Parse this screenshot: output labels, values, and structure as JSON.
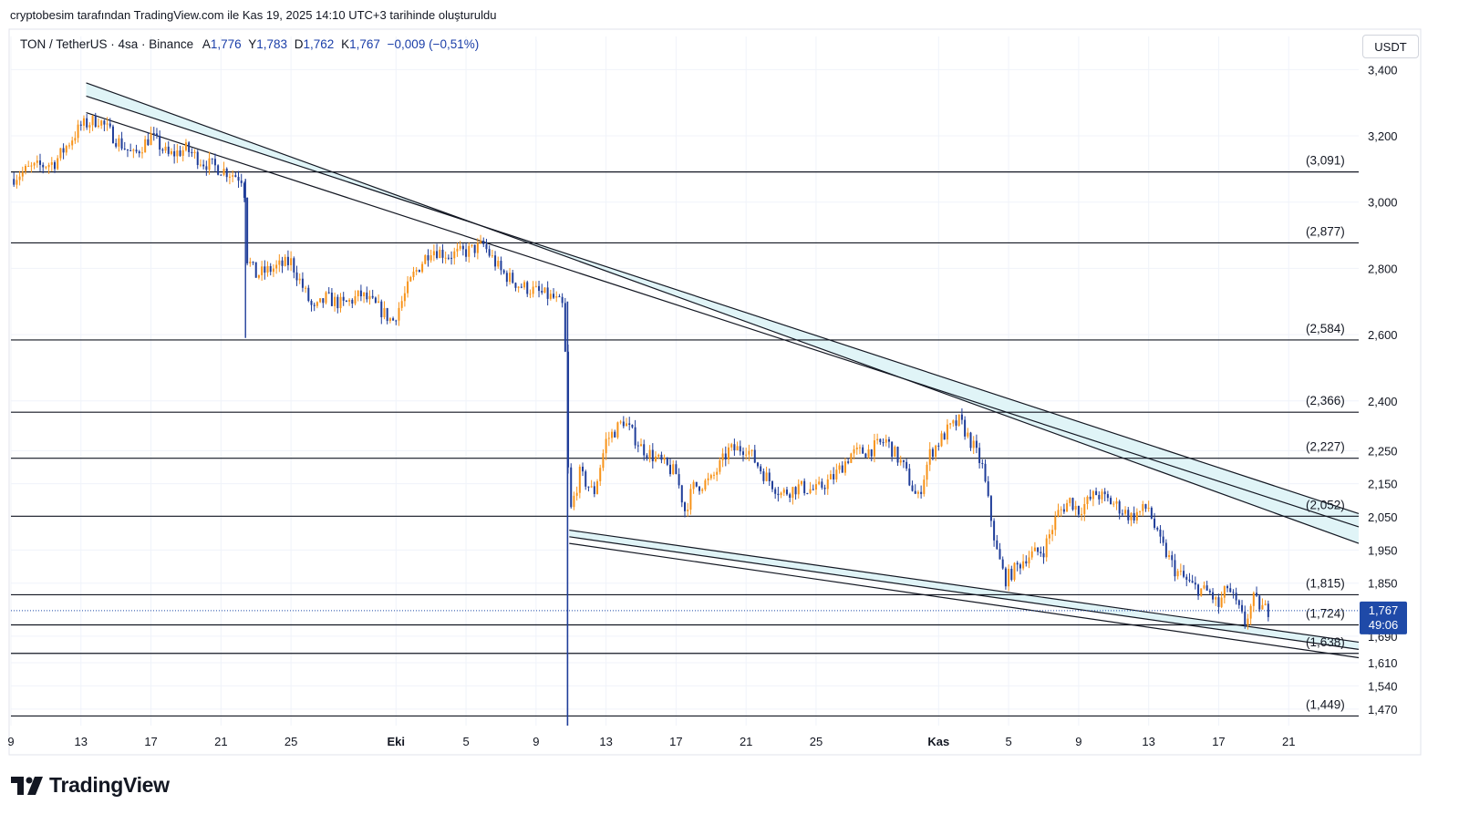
{
  "attribution": "cryptobesim tarafından TradingView.com ile Kas 19, 2025 14:10 UTC+3 tarihinde oluşturuldu",
  "header": {
    "symbol": "TON / TetherUS · 4sa · Binance",
    "open_label": "A",
    "open": "1,776",
    "high_label": "Y",
    "high": "1,783",
    "low_label": "D",
    "low": "1,762",
    "close_label": "K",
    "close": "1,767",
    "change": "−0,009 (−0,51%)"
  },
  "unit_label": "USDT",
  "brand": "TradingView",
  "colors": {
    "up": "#f7931a",
    "down": "#1f3d99",
    "channel_fill": "#e0f4f7",
    "price_tag": "#1f4aa8",
    "line": "#131722"
  },
  "chart_data": {
    "type": "candlestick",
    "title": "TON / TetherUS · 4sa · Binance",
    "ylim": [
      1.42,
      3.5
    ],
    "y_ticks": [
      "3,400",
      "3,200",
      "3,000",
      "2,800",
      "2,600",
      "2,400",
      "2,250",
      "2,150",
      "2,050",
      "1,950",
      "1,850",
      "1,690",
      "1,610",
      "1,540",
      "1,470"
    ],
    "y_tick_values": [
      3.4,
      3.2,
      3.0,
      2.8,
      2.6,
      2.4,
      2.25,
      2.15,
      2.05,
      1.95,
      1.85,
      1.69,
      1.61,
      1.54,
      1.47
    ],
    "x_tick_labels": [
      "9",
      "13",
      "17",
      "21",
      "25",
      "Eki",
      "5",
      "9",
      "13",
      "17",
      "21",
      "25",
      "Kas",
      "5",
      "9",
      "13",
      "17",
      "21"
    ],
    "x_tick_days": [
      9,
      13,
      17,
      21,
      25,
      31,
      35,
      39,
      43,
      47,
      51,
      55,
      62,
      66,
      70,
      74,
      78,
      82
    ],
    "x_bold_labels": [
      "Eki",
      "Kas"
    ],
    "x_range_days": [
      9,
      86
    ],
    "horizontal_levels": [
      {
        "value": 3.091,
        "label": "(3,091)"
      },
      {
        "value": 2.877,
        "label": "(2,877)"
      },
      {
        "value": 2.584,
        "label": "(2,584)"
      },
      {
        "value": 2.366,
        "label": "(2,366)"
      },
      {
        "value": 2.227,
        "label": "(2,227)"
      },
      {
        "value": 2.052,
        "label": "(2,052)"
      },
      {
        "value": 1.815,
        "label": "(1,815)"
      },
      {
        "value": 1.724,
        "label": "(1,724)"
      },
      {
        "value": 1.638,
        "label": "(1,638)"
      },
      {
        "value": 1.449,
        "label": "(1,449)"
      }
    ],
    "upper_channel": {
      "start_day": 13.3,
      "end_day": 86,
      "outer": [
        3.36,
        1.97
      ],
      "inner": [
        3.27,
        2.02
      ],
      "inner_fill_band": [
        3.32,
        2.06
      ]
    },
    "lower_channel": {
      "start_day": 40.9,
      "end_day": 86,
      "lines": [
        [
          2.01,
          1.672
        ],
        [
          1.99,
          1.65
        ],
        [
          1.97,
          1.625
        ]
      ]
    },
    "current_price": {
      "value": 1.767,
      "label": "1,767",
      "countdown": "49:06"
    },
    "anchors": [
      [
        9,
        3.07
      ],
      [
        10,
        3.1
      ],
      [
        11.5,
        3.12
      ],
      [
        13,
        3.23
      ],
      [
        14,
        3.25
      ],
      [
        15,
        3.19
      ],
      [
        16,
        3.14
      ],
      [
        17,
        3.2
      ],
      [
        18,
        3.14
      ],
      [
        19,
        3.16
      ],
      [
        20,
        3.12
      ],
      [
        21,
        3.1
      ],
      [
        22.3,
        3.07
      ],
      [
        22.5,
        2.83
      ],
      [
        23,
        2.78
      ],
      [
        24,
        2.8
      ],
      [
        25,
        2.82
      ],
      [
        25.7,
        2.74
      ],
      [
        26.3,
        2.67
      ],
      [
        27,
        2.71
      ],
      [
        28,
        2.69
      ],
      [
        29,
        2.72
      ],
      [
        30,
        2.68
      ],
      [
        30.8,
        2.64
      ],
      [
        31.5,
        2.72
      ],
      [
        32,
        2.78
      ],
      [
        33,
        2.86
      ],
      [
        34,
        2.84
      ],
      [
        35,
        2.85
      ],
      [
        36,
        2.87
      ],
      [
        37,
        2.79
      ],
      [
        38,
        2.75
      ],
      [
        39,
        2.73
      ],
      [
        40,
        2.71
      ],
      [
        40.6,
        2.68
      ],
      [
        40.9,
        2.05
      ],
      [
        41.5,
        2.18
      ],
      [
        42.3,
        2.12
      ],
      [
        43,
        2.28
      ],
      [
        44,
        2.34
      ],
      [
        45,
        2.26
      ],
      [
        46,
        2.22
      ],
      [
        47,
        2.18
      ],
      [
        47.5,
        2.07
      ],
      [
        48,
        2.14
      ],
      [
        49,
        2.16
      ],
      [
        50,
        2.25
      ],
      [
        51,
        2.26
      ],
      [
        52,
        2.18
      ],
      [
        53,
        2.12
      ],
      [
        54,
        2.14
      ],
      [
        55,
        2.13
      ],
      [
        56,
        2.17
      ],
      [
        57,
        2.24
      ],
      [
        58,
        2.25
      ],
      [
        59,
        2.28
      ],
      [
        60,
        2.2
      ],
      [
        60.8,
        2.1
      ],
      [
        61.5,
        2.24
      ],
      [
        62.5,
        2.31
      ],
      [
        63.2,
        2.34
      ],
      [
        64,
        2.26
      ],
      [
        64.5,
        2.2
      ],
      [
        65.3,
        1.95
      ],
      [
        65.8,
        1.86
      ],
      [
        66.5,
        1.9
      ],
      [
        67,
        1.93
      ],
      [
        68,
        1.95
      ],
      [
        68.8,
        2.06
      ],
      [
        69.5,
        2.1
      ],
      [
        70,
        2.07
      ],
      [
        71,
        2.12
      ],
      [
        72,
        2.09
      ],
      [
        73,
        2.05
      ],
      [
        74,
        2.08
      ],
      [
        74.5,
        1.99
      ],
      [
        75.5,
        1.89
      ],
      [
        76.5,
        1.84
      ],
      [
        77.5,
        1.82
      ],
      [
        78,
        1.78
      ],
      [
        78.5,
        1.84
      ],
      [
        79.5,
        1.73
      ],
      [
        80,
        1.8
      ],
      [
        80.5,
        1.775
      ],
      [
        80.9,
        1.767
      ]
    ]
  }
}
